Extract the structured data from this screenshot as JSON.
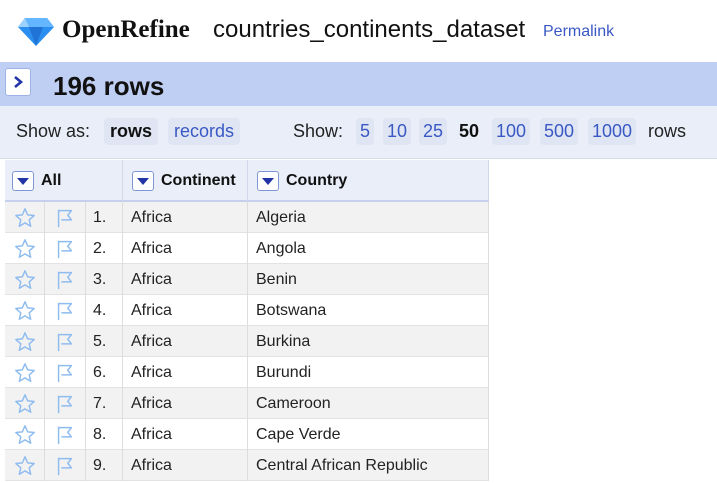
{
  "header": {
    "brand": "OpenRefine",
    "project_name": "countries_continents_dataset",
    "permalink": "Permalink"
  },
  "summary": {
    "row_count": "196 rows"
  },
  "view": {
    "show_as_label": "Show as:",
    "modes": [
      "rows",
      "records"
    ],
    "active_mode": "rows",
    "show_label": "Show:",
    "page_sizes": [
      "5",
      "10",
      "25",
      "50",
      "100",
      "500",
      "1000"
    ],
    "selected_page_size": "50",
    "rows_suffix": "rows"
  },
  "table": {
    "columns": [
      "All",
      "Continent",
      "Country"
    ],
    "rows": [
      {
        "index": "1.",
        "continent": "Africa",
        "country": "Algeria"
      },
      {
        "index": "2.",
        "continent": "Africa",
        "country": "Angola"
      },
      {
        "index": "3.",
        "continent": "Africa",
        "country": "Benin"
      },
      {
        "index": "4.",
        "continent": "Africa",
        "country": "Botswana"
      },
      {
        "index": "5.",
        "continent": "Africa",
        "country": "Burkina"
      },
      {
        "index": "6.",
        "continent": "Africa",
        "country": "Burundi"
      },
      {
        "index": "7.",
        "continent": "Africa",
        "country": "Cameroon"
      },
      {
        "index": "8.",
        "continent": "Africa",
        "country": "Cape Verde"
      },
      {
        "index": "9.",
        "continent": "Africa",
        "country": "Central African Republic"
      }
    ]
  },
  "icons": {
    "logo": "diamond-icon",
    "collapse": "chevron-right-icon",
    "star": "star-icon",
    "flag": "flag-icon",
    "dropdown": "triangle-down-icon"
  },
  "colors": {
    "link": "#3a58c4",
    "summary_bar": "#bfcff3",
    "view_bar": "#e9eef9",
    "logo_blue": "#2a8ff0"
  }
}
